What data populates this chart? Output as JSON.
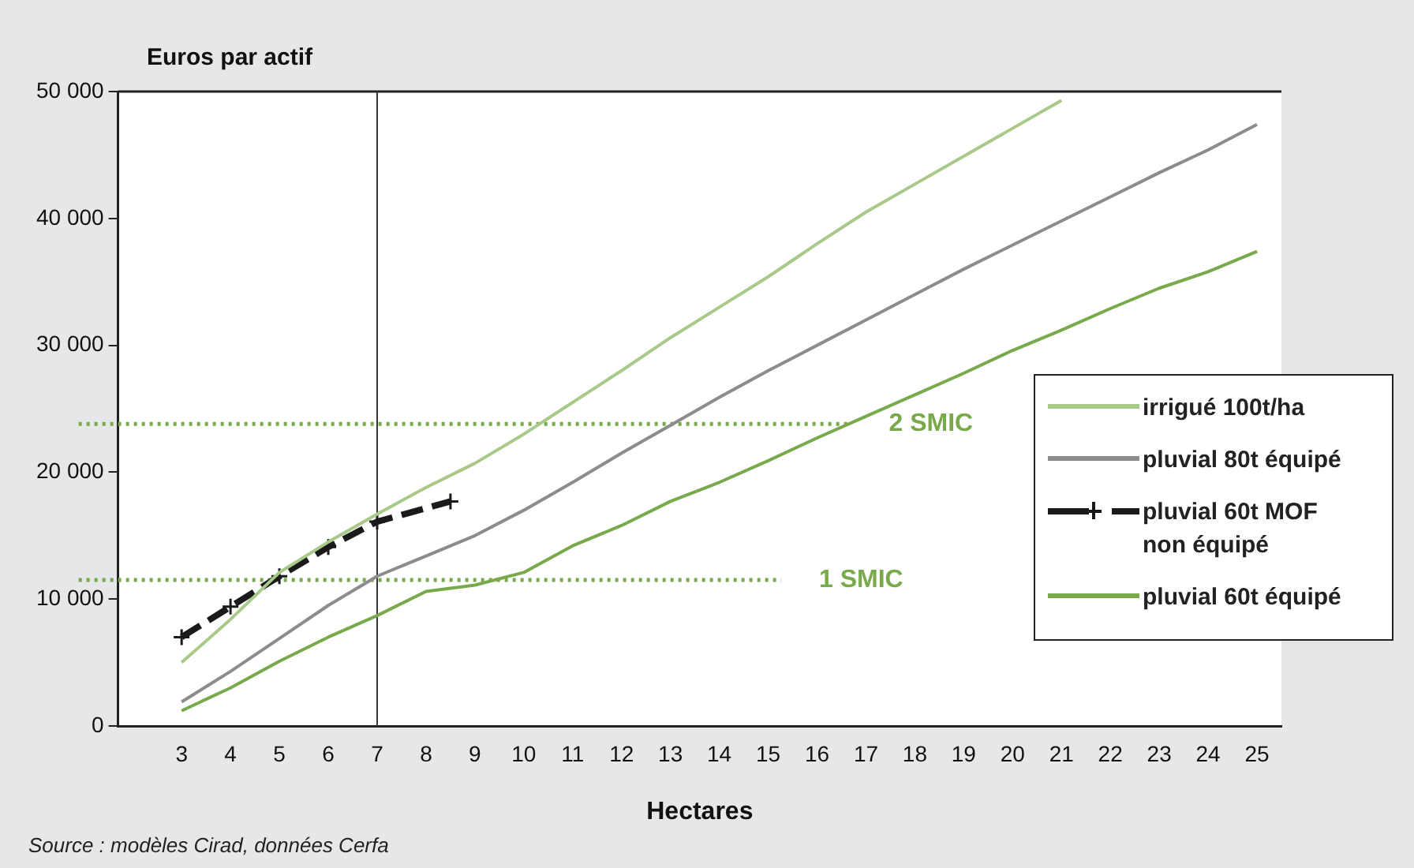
{
  "chart_data": {
    "type": "line",
    "ylabel": "Euros par actif",
    "xlabel": "Hectares",
    "x": [
      3,
      4,
      5,
      6,
      7,
      8,
      9,
      10,
      11,
      12,
      13,
      14,
      15,
      16,
      17,
      18,
      19,
      20,
      21,
      22,
      23,
      24,
      25
    ],
    "xlim": [
      1.7,
      25.5
    ],
    "xticks": [
      3,
      4,
      5,
      6,
      7,
      8,
      9,
      10,
      11,
      12,
      13,
      14,
      15,
      16,
      17,
      18,
      19,
      20,
      21,
      22,
      23,
      24,
      25
    ],
    "ylim": [
      0,
      50000
    ],
    "yticks": [
      0,
      {
        "value": 10000,
        "label": "10 000"
      },
      {
        "value": 20000,
        "label": "20 000"
      },
      {
        "value": 30000,
        "label": "30 000"
      },
      {
        "value": 40000,
        "label": "40 000"
      },
      {
        "value": 50000,
        "label": "50 000"
      }
    ],
    "series": [
      {
        "name": "irrigué 100t/ha",
        "color": "#a9c98a",
        "values": [
          5000,
          8400,
          12100,
          14500,
          16700,
          18800,
          20700,
          23000,
          25500,
          28000,
          30600,
          33000,
          35400,
          38000,
          40500,
          42700,
          44900,
          47100,
          49300,
          null,
          null,
          null,
          null
        ]
      },
      {
        "name": "pluvial 80t équipé",
        "color": "#8c8c8c",
        "values": [
          1900,
          4300,
          6900,
          9500,
          11800,
          13400,
          15000,
          17000,
          19200,
          21500,
          23700,
          25900,
          28000,
          30000,
          32000,
          34000,
          36000,
          37900,
          39800,
          41700,
          43600,
          45400,
          47400
        ]
      },
      {
        "name": "pluvial 60t MOF non équipé",
        "color": "#1a1a1a",
        "x": [
          3,
          4,
          5,
          6,
          7,
          8.5
        ],
        "values": [
          7000,
          9400,
          11800,
          14100,
          16100,
          17700
        ],
        "marker": "cross",
        "line_style": "dashed"
      },
      {
        "name": "pluvial 60t équipé",
        "color": "#78a94a",
        "values": [
          1200,
          3000,
          5100,
          7000,
          8700,
          10600,
          11100,
          12100,
          14200,
          15800,
          17700,
          19200,
          20900,
          22700,
          24400,
          26100,
          27800,
          29600,
          31200,
          32900,
          34500,
          35800,
          37400
        ]
      }
    ],
    "ref_lines": [
      {
        "axis": "y",
        "value": 23800,
        "label": "2 SMIC",
        "color": "#78a94a",
        "line_style": "dotted"
      },
      {
        "axis": "y",
        "value": 11500,
        "label": "1 SMIC",
        "color": "#78a94a",
        "line_style": "dotted"
      },
      {
        "axis": "x",
        "value": 7,
        "color": "#333333",
        "line_style": "solid"
      }
    ],
    "legend": "right",
    "marker": "none",
    "line_style": "solid",
    "grid": false,
    "annotations": [
      "Source : modèles Cirad, données Cerfa"
    ]
  }
}
